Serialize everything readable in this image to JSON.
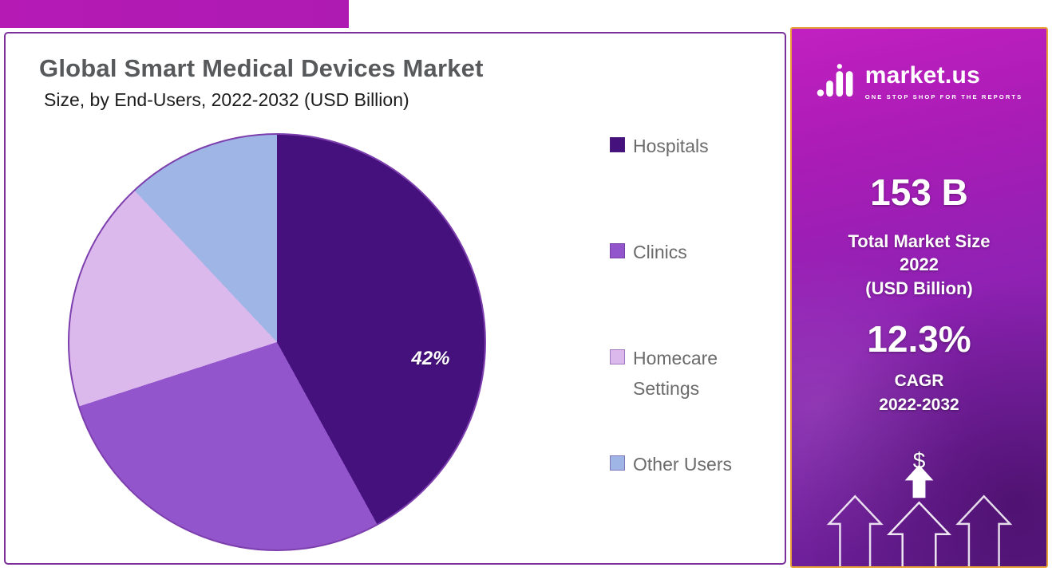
{
  "chart_data": {
    "type": "pie",
    "title": "Global Smart Medical Devices Market",
    "subtitle": "Size, by End-Users, 2022-2032 (USD Billion)",
    "categories": [
      "Hospitals",
      "Clinics",
      "Homecare Settings",
      "Other Users"
    ],
    "values": [
      42,
      28,
      18,
      12
    ],
    "colors": [
      "#45117d",
      "#9355cb",
      "#dcb9ed",
      "#9eb5e6"
    ],
    "start_angle_deg": 0,
    "direction": "clockwise",
    "data_label": "42%",
    "data_label_series": "Hospitals",
    "legend_position": "right",
    "pie_border_color": "#7d3fae"
  },
  "sidebar": {
    "brand": {
      "name": "market.us",
      "tagline": "ONE STOP SHOP FOR THE REPORTS"
    },
    "market_size": {
      "value": "153 B",
      "label_lines": [
        "Total Market Size",
        "2022",
        "(USD Billion)"
      ]
    },
    "cagr": {
      "value": "12.3%",
      "label_lines": [
        "CAGR",
        "2022-2032"
      ]
    },
    "currency_symbol": "$",
    "accent_border_color": "#e9a238",
    "background_color": "#9b21b6"
  }
}
